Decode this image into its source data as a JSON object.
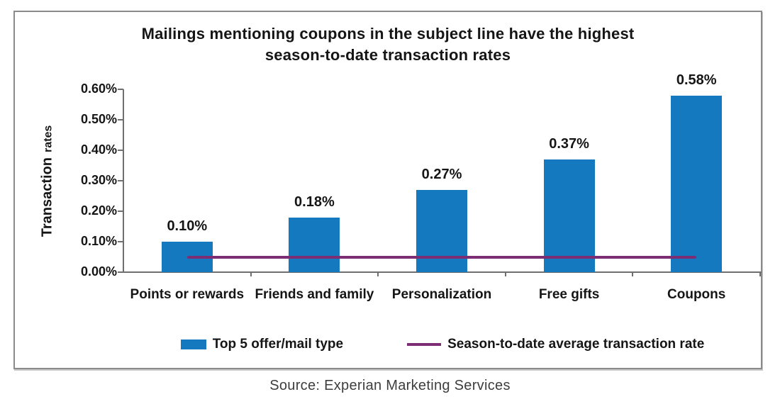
{
  "source": {
    "text": "Source: Experian Marketing Services"
  },
  "colors": {
    "bar_blue": "#1479bf",
    "line_purple": "#7d2d73",
    "frame_border": "#8a8a8a",
    "axis_gray": "#6f6f6f"
  },
  "chart_data": {
    "type": "bar",
    "title": "Mailings mentioning coupons in the subject line have the highest season-to-date transaction rates",
    "title_lines": [
      "Mailings mentioning coupons in the subject line have the highest",
      "season-to-date transaction rates"
    ],
    "categories": [
      "Points or rewards",
      "Friends and family",
      "Personalization",
      "Free gifts",
      "Coupons"
    ],
    "values": [
      0.1,
      0.18,
      0.27,
      0.37,
      0.58
    ],
    "data_labels": [
      "0.10%",
      "0.18%",
      "0.27%",
      "0.37%",
      "0.58%"
    ],
    "series": [
      {
        "name": "Top 5 offer/mail type",
        "type": "bar",
        "values": [
          0.1,
          0.18,
          0.27,
          0.37,
          0.58
        ],
        "color": "#1479bf"
      },
      {
        "name": "Season-to-date average transaction rate",
        "type": "line",
        "value": 0.05,
        "color": "#7d2d73"
      }
    ],
    "xlabel": "",
    "ylabel": "Transaction rates",
    "ylabel_parts": [
      "Transaction",
      "rates"
    ],
    "ylim": [
      0,
      0.6
    ],
    "yticks": [
      "0.00%",
      "0.10%",
      "0.20%",
      "0.30%",
      "0.40%",
      "0.50%",
      "0.60%"
    ],
    "grid": false,
    "legend_position": "bottom"
  }
}
